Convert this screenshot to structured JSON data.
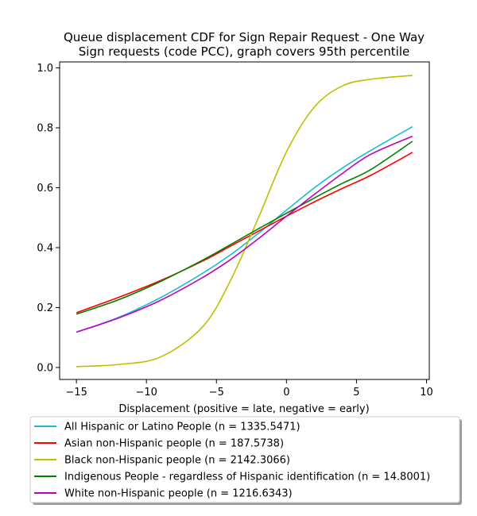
{
  "chart_data": {
    "type": "line",
    "title_lines": [
      "Queue displacement CDF for Sign Repair Request - One Way",
      "Sign  requests (code PCC), graph covers 95th percentile"
    ],
    "xlabel": "Displacement (positive = late, negative = early)",
    "ylabel": "",
    "xlim": [
      -16.2,
      10.2
    ],
    "ylim": [
      -0.04,
      1.02
    ],
    "xticks": [
      -15,
      -10,
      -5,
      0,
      5,
      10
    ],
    "yticks": [
      0.0,
      0.2,
      0.4,
      0.6,
      0.8,
      1.0
    ],
    "xtick_labels": [
      "−15",
      "−10",
      "−5",
      "0",
      "5",
      "10"
    ],
    "ytick_labels": [
      "0.0",
      "0.2",
      "0.4",
      "0.6",
      "0.8",
      "1.0"
    ],
    "grid": false,
    "legend_position": "bottom",
    "x": [
      -15,
      -12,
      -9,
      -6,
      -4,
      -2,
      0,
      2,
      4,
      6,
      9
    ],
    "series": [
      {
        "name": "All Hispanic or Latino People (n = 1335.5471)",
        "color": "#17becf",
        "values": [
          0.118,
          0.167,
          0.233,
          0.314,
          0.376,
          0.448,
          0.525,
          0.6,
          0.666,
          0.724,
          0.804
        ]
      },
      {
        "name": "Asian non-Hispanic people (n = 187.5738)",
        "color": "#ff0000",
        "values": [
          0.183,
          0.234,
          0.29,
          0.355,
          0.405,
          0.455,
          0.505,
          0.553,
          0.598,
          0.641,
          0.718
        ]
      },
      {
        "name": "Black non-Hispanic people (n = 2142.3066)",
        "color": "#bfbf00",
        "values": [
          0.003,
          0.01,
          0.035,
          0.135,
          0.29,
          0.5,
          0.72,
          0.87,
          0.94,
          0.962,
          0.975
        ]
      },
      {
        "name": "Indigenous People - regardless of Hispanic identification (n = 14.8001)",
        "color": "#008000",
        "values": [
          0.178,
          0.226,
          0.287,
          0.358,
          0.41,
          0.463,
          0.515,
          0.566,
          0.615,
          0.66,
          0.755
        ]
      },
      {
        "name": "White non-Hispanic people (n = 1216.6343)",
        "color": "#bf00bf",
        "values": [
          0.118,
          0.165,
          0.224,
          0.3,
          0.36,
          0.43,
          0.505,
          0.578,
          0.648,
          0.711,
          0.772
        ]
      }
    ]
  }
}
